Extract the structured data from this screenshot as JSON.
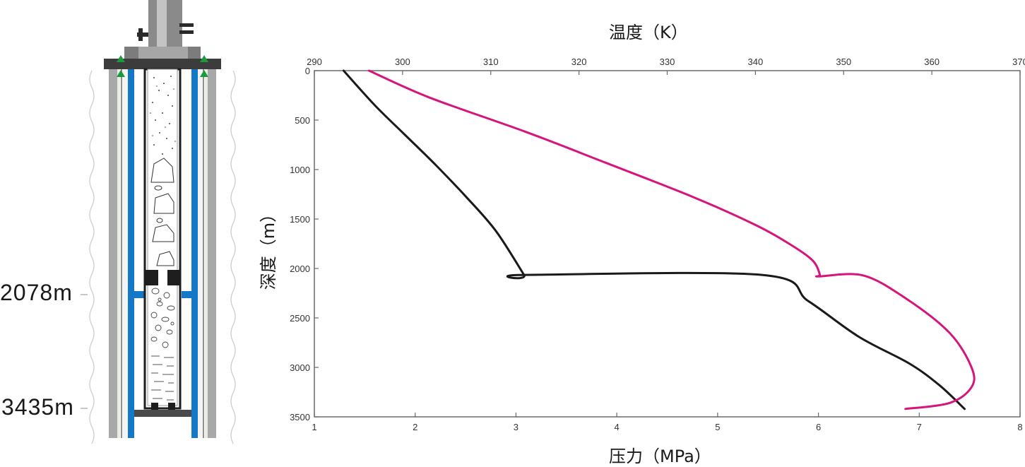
{
  "well": {
    "depth_markers": [
      "2078m",
      "3435m"
    ],
    "colors": {
      "tubing": "#1478c8",
      "casing": "#a8a8a8",
      "cap": "#3c3c3c",
      "arrow": "#1a9a3c",
      "packer": "#1e1e1e"
    }
  },
  "chart_data": {
    "type": "line",
    "top_axis": {
      "label": "温度（K）",
      "range": [
        290,
        370
      ],
      "ticks": [
        290,
        300,
        310,
        320,
        330,
        340,
        350,
        360,
        370
      ]
    },
    "bottom_axis": {
      "label": "压力（MPa）",
      "range": [
        1,
        8
      ],
      "ticks": [
        1,
        2,
        3,
        4,
        5,
        6,
        7,
        8
      ]
    },
    "y_axis": {
      "label": "深度（m）",
      "range": [
        0,
        3500
      ],
      "inverted": true,
      "ticks": [
        0,
        500,
        1000,
        1500,
        2000,
        2500,
        3000,
        3500
      ]
    },
    "series": [
      {
        "axis": "bottom",
        "color": "#1a1a1a",
        "x": [
          1.29,
          1.6,
          1.9,
          2.2,
          2.5,
          2.8,
          3.08,
          3.08,
          5.44,
          5.9,
          6.4,
          6.9,
          7.2,
          7.45
        ],
        "y": [
          0,
          350,
          650,
          950,
          1270,
          1620,
          2065,
          2065,
          2065,
          2330,
          2690,
          2960,
          3180,
          3420
        ]
      },
      {
        "axis": "top",
        "color": "#d6157c",
        "x": [
          296.2,
          303,
          314,
          323,
          333,
          340,
          344,
          346.5,
          347.3,
          347.2,
          352.2,
          357,
          362,
          364.5,
          364.5,
          362,
          357
        ],
        "y": [
          0,
          270,
          620,
          930,
          1280,
          1560,
          1760,
          1920,
          2060,
          2080,
          2070,
          2300,
          2650,
          3000,
          3200,
          3360,
          3420
        ]
      }
    ]
  }
}
